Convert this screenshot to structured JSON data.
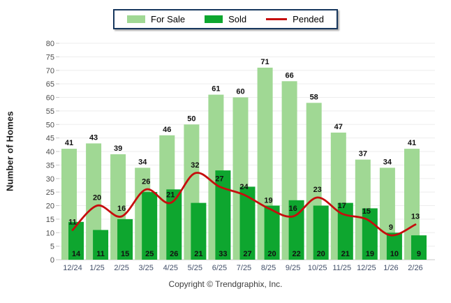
{
  "legend": {
    "items": [
      {
        "label": "For Sale",
        "color": "#A0D894",
        "type": "swatch"
      },
      {
        "label": "Sold",
        "color": "#0EA62F",
        "type": "swatch"
      },
      {
        "label": "Pended",
        "color": "#C60D0D",
        "type": "line"
      }
    ]
  },
  "chart_data": {
    "type": "bar",
    "categories": [
      "12/24",
      "1/25",
      "2/25",
      "3/25",
      "4/25",
      "5/25",
      "6/25",
      "7/25",
      "8/25",
      "9/25",
      "10/25",
      "11/25",
      "12/25",
      "1/26",
      "2/26"
    ],
    "series": [
      {
        "name": "For Sale",
        "type": "bar",
        "color": "#A0D894",
        "values": [
          41,
          43,
          39,
          34,
          46,
          50,
          61,
          60,
          71,
          66,
          58,
          47,
          37,
          34,
          41
        ]
      },
      {
        "name": "Sold",
        "type": "bar",
        "color": "#0EA62F",
        "values": [
          14,
          11,
          15,
          25,
          26,
          21,
          33,
          27,
          20,
          22,
          20,
          21,
          19,
          10,
          9
        ]
      },
      {
        "name": "Pended",
        "type": "line",
        "color": "#C60D0D",
        "values": [
          11,
          20,
          16,
          26,
          21,
          32,
          27,
          24,
          19,
          16,
          23,
          17,
          15,
          9,
          13
        ]
      }
    ],
    "title": "",
    "xlabel": "",
    "ylabel": "Number of Homes",
    "ylim": [
      0,
      80
    ],
    "ytick_step": 5,
    "grid": true,
    "legend_position": "top-center",
    "value_labels_shown": true
  },
  "colors": {
    "grid_line": "#EDEDED",
    "axis_line": "#C9C9C9",
    "tick_label": "#4D4D4D",
    "x_label": "#44506A",
    "value_label": "#111111"
  },
  "footer": {
    "copyright": "Copyright © Trendgraphix, Inc."
  }
}
